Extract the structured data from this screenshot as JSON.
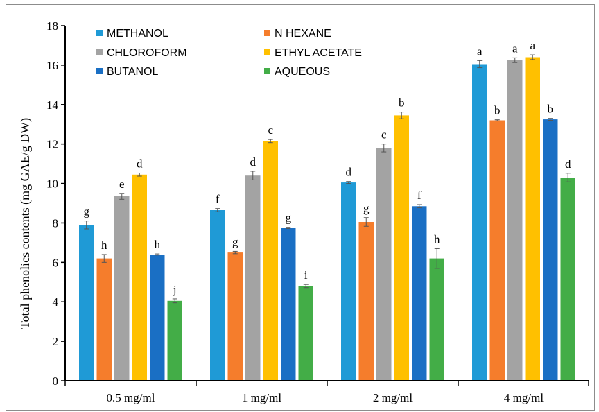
{
  "chart_data": {
    "type": "bar",
    "ylabel": "Total phenolics contents (mg GAE/g DW)",
    "xlabel": "",
    "title": "",
    "ylim": [
      0,
      18
    ],
    "yticks": [
      0,
      2,
      4,
      6,
      8,
      10,
      12,
      14,
      16,
      18
    ],
    "grid": false,
    "legend_position": "top-left",
    "categories": [
      "0.5 mg/ml",
      "1 mg/ml",
      "2 mg/ml",
      "4 mg/ml"
    ],
    "series": [
      {
        "name": "METHANOL",
        "color": "#1f9ad6",
        "values": [
          7.9,
          8.65,
          10.05,
          16.05
        ],
        "errors": [
          0.2,
          0.08,
          0.05,
          0.18
        ],
        "labels": [
          "g",
          "f",
          "d",
          "a"
        ]
      },
      {
        "name": "N HEXANE",
        "color": "#f57d2c",
        "values": [
          6.2,
          6.5,
          8.05,
          13.2
        ],
        "errors": [
          0.2,
          0.06,
          0.22,
          0.03
        ],
        "labels": [
          "h",
          "g",
          "g",
          "b"
        ]
      },
      {
        "name": "CHLOROFORM",
        "color": "#a3a3a3",
        "values": [
          9.35,
          10.4,
          11.8,
          16.25
        ],
        "errors": [
          0.15,
          0.22,
          0.2,
          0.12
        ],
        "labels": [
          "e",
          "d",
          "c",
          "a"
        ]
      },
      {
        "name": "ETHYL ACETATE",
        "color": "#ffc000",
        "values": [
          10.45,
          12.15,
          13.45,
          16.4
        ],
        "errors": [
          0.08,
          0.08,
          0.17,
          0.12
        ],
        "labels": [
          "d",
          "c",
          "b",
          "a"
        ]
      },
      {
        "name": "BUTANOL",
        "color": "#1a6fc4",
        "values": [
          6.4,
          7.75,
          8.85,
          13.25
        ],
        "errors": [
          0.03,
          0.03,
          0.08,
          0.05
        ],
        "labels": [
          "h",
          "g",
          "f",
          "b"
        ]
      },
      {
        "name": "AQUEOUS",
        "color": "#43ad47",
        "values": [
          4.05,
          4.8,
          6.2,
          10.3
        ],
        "errors": [
          0.1,
          0.08,
          0.5,
          0.22
        ],
        "labels": [
          "j",
          "i",
          "h",
          "d"
        ]
      }
    ]
  }
}
